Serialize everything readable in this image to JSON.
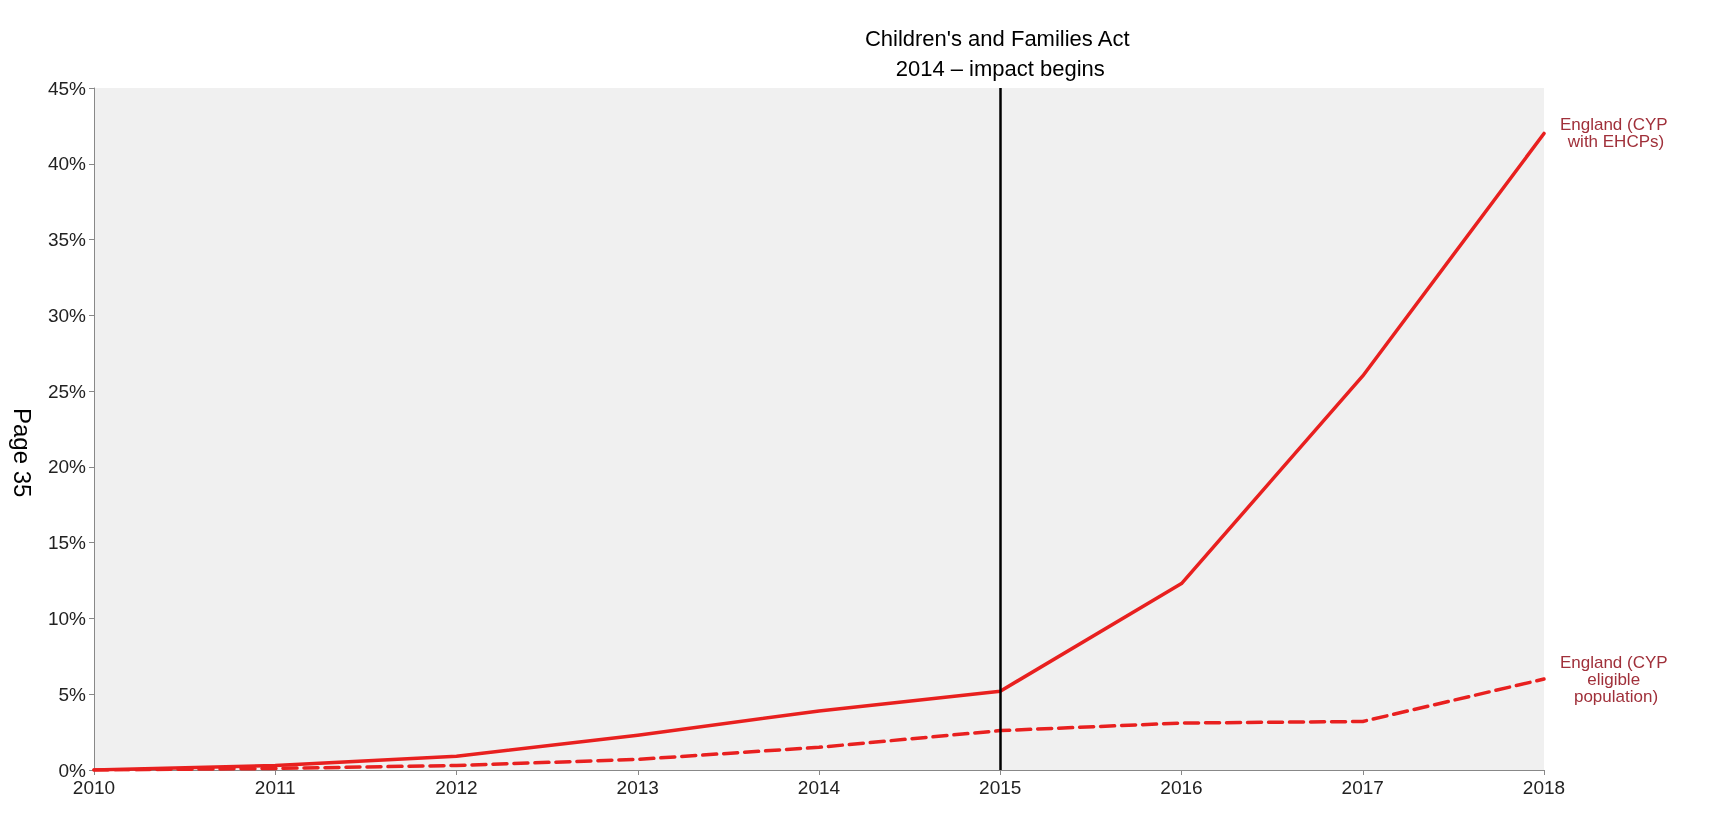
{
  "chart_data": {
    "type": "line",
    "x": [
      2010,
      2011,
      2012,
      2013,
      2014,
      2015,
      2016,
      2017,
      2018
    ],
    "series": [
      {
        "name": "England (CYP with EHCPs)",
        "color": "#e8201f",
        "line_style": "solid",
        "values": [
          0,
          0.3,
          0.9,
          2.3,
          3.9,
          5.2,
          12.3,
          26,
          42
        ]
      },
      {
        "name": "England (CYP eligible population)",
        "color": "#e8201f",
        "line_style": "dashed",
        "values": [
          0,
          0.1,
          0.3,
          0.7,
          1.5,
          2.6,
          3.1,
          3.2,
          6
        ]
      }
    ],
    "xlim": [
      2010,
      2018
    ],
    "xticks": [
      2010,
      2011,
      2012,
      2013,
      2014,
      2015,
      2016,
      2017,
      2018
    ],
    "ylim": [
      0,
      45
    ],
    "yticks": [
      {
        "value": 0,
        "label": "0%"
      },
      {
        "value": 5,
        "label": "5%"
      },
      {
        "value": 10,
        "label": "10%"
      },
      {
        "value": 15,
        "label": "15%"
      },
      {
        "value": 20,
        "label": "20%"
      },
      {
        "value": 25,
        "label": "25%"
      },
      {
        "value": 30,
        "label": "30%"
      },
      {
        "value": 35,
        "label": "35%"
      },
      {
        "value": 40,
        "label": "40%"
      },
      {
        "value": 45,
        "label": "45%"
      }
    ],
    "ref_lines": [
      {
        "axis": "x",
        "value": 2015,
        "label": "Children's and Families Act 2014 – impact begins",
        "color": "#000000"
      }
    ],
    "annotations": [
      "Page 35"
    ],
    "grid": false,
    "marker": "none",
    "legend": false
  }
}
